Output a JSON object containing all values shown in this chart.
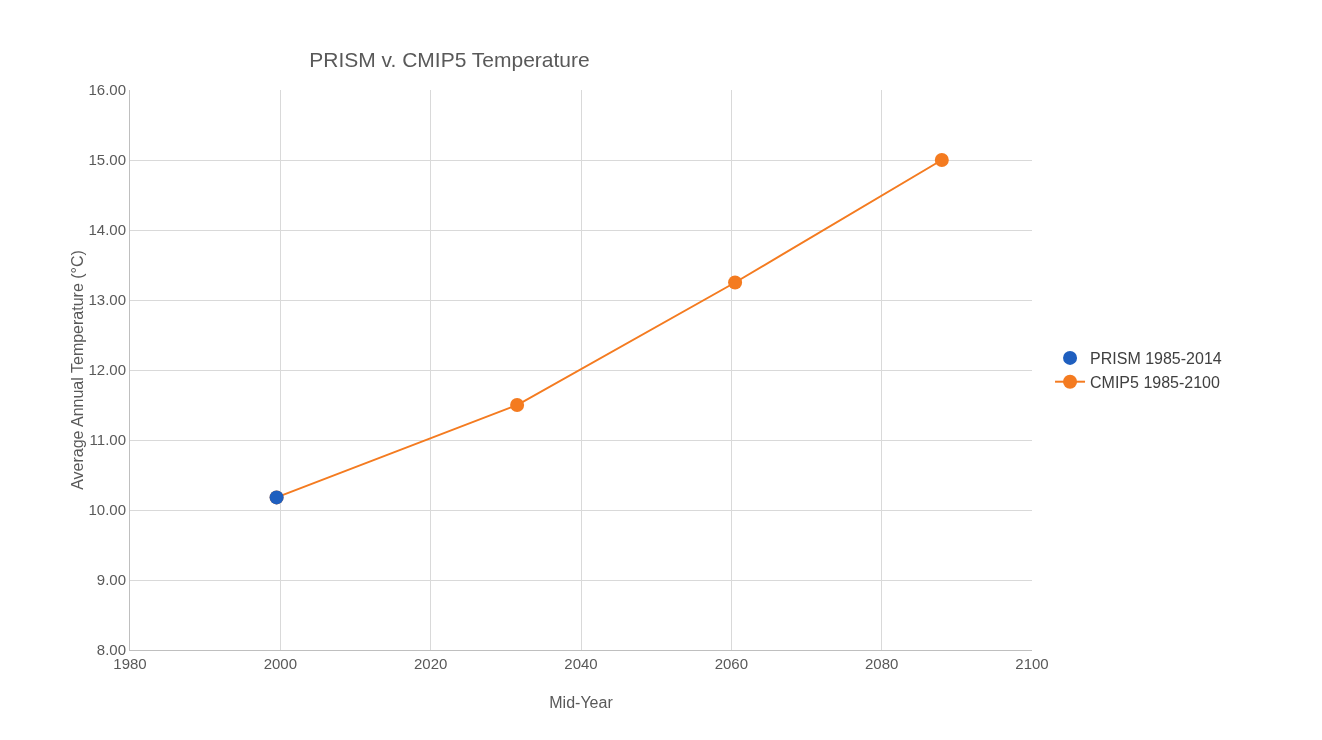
{
  "chart_data": {
    "type": "line",
    "title": "PRISM v. CMIP5 Temperature",
    "xlabel": "Mid-Year",
    "ylabel": "Average Annual Temperature (°C)",
    "xlim": [
      1980,
      2100
    ],
    "xticks": [
      1980,
      2000,
      2020,
      2040,
      2060,
      2080,
      2100
    ],
    "ylim": [
      8,
      16
    ],
    "yticks": [
      {
        "value": 8,
        "label": "8.00"
      },
      {
        "value": 9,
        "label": "9.00"
      },
      {
        "value": 10,
        "label": "10.00"
      },
      {
        "value": 11,
        "label": "11.00"
      },
      {
        "value": 12,
        "label": "12.00"
      },
      {
        "value": 13,
        "label": "13.00"
      },
      {
        "value": 14,
        "label": "14.00"
      },
      {
        "value": 15,
        "label": "15.00"
      },
      {
        "value": 16,
        "label": "16.00"
      }
    ],
    "grid": true,
    "legend": "right",
    "marker": "circle",
    "line_style": "solid",
    "series": [
      {
        "name": "CMIP5 1985-2100",
        "color": "#f47b20",
        "x": [
          1999.5,
          2031.5,
          2060.5,
          2088
        ],
        "values": [
          10.18,
          11.5,
          13.25,
          15.0
        ]
      },
      {
        "name": "PRISM 1985-2014",
        "type": "scatter",
        "color": "#1f5fbf",
        "x": [
          1999.5
        ],
        "values": [
          10.18
        ]
      }
    ]
  }
}
